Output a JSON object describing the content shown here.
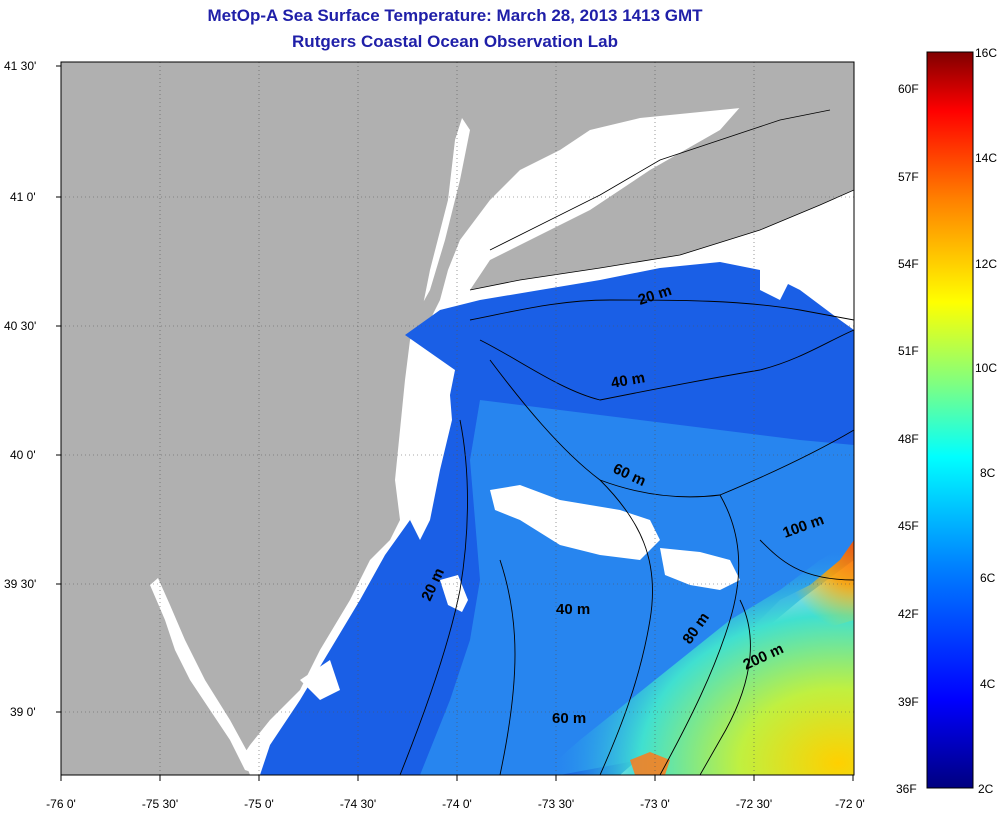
{
  "title": "MetOp-A Sea Surface Temperature:  March 28, 2013 1413 GMT",
  "subtitle": "Rutgers Coastal Ocean Observation Lab",
  "axes": {
    "lat_ticks": [
      "41 30'",
      "41 0'",
      "40 30'",
      "40 0'",
      "39 30'",
      "39 0'"
    ],
    "lon_ticks": [
      "-76 0'",
      "-75 30'",
      "-75 0'",
      "-74 30'",
      "-74 0'",
      "-73 30'",
      "-73 0'",
      "-72 30'",
      "-72 0'"
    ]
  },
  "colorbar": {
    "celsius_labels": [
      "16C",
      "14C",
      "12C",
      "10C",
      "8C",
      "6C",
      "4C",
      "2C"
    ],
    "fahrenheit_labels": [
      "60F",
      "57F",
      "54F",
      "51F",
      "48F",
      "45F",
      "42F",
      "39F",
      "36F"
    ],
    "colors": [
      "#000080",
      "#0000ff",
      "#0080ff",
      "#00ffff",
      "#80ff80",
      "#ffff00",
      "#ff8000",
      "#ff0000",
      "#800000"
    ]
  },
  "contour_labels": [
    "20 m",
    "40 m",
    "60 m",
    "100 m",
    "20 m",
    "40 m",
    "80 m",
    "200 m",
    "60 m"
  ],
  "colors": {
    "land": "#b0b0b0",
    "cloud": "#ffffff",
    "title": "#1f1fa8"
  }
}
